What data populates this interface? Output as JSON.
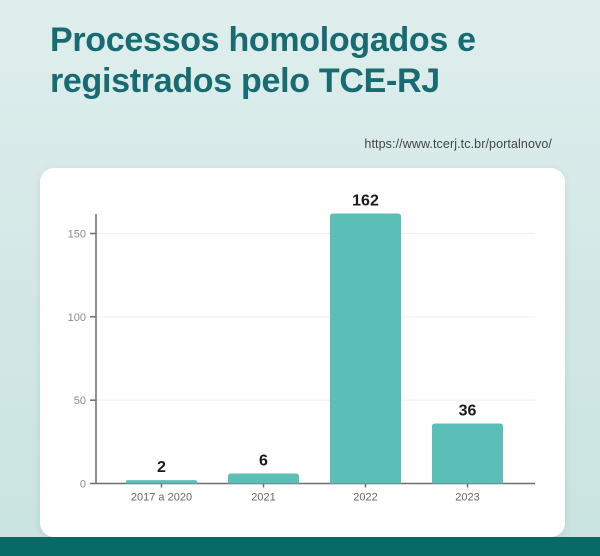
{
  "header": {
    "title": "Processos homologados e registrados pelo TCE-RJ",
    "source_url": "https://www.tcerj.tc.br/portalnovo/"
  },
  "colors": {
    "title_text": "#196b72",
    "footer_bar": "#086a67",
    "background_top": "#deeeed",
    "background_bottom": "#c9e3e0",
    "card_background": "#ffffff",
    "bar_fill": "#5bbfb7",
    "axis_line": "#6e6e6e",
    "gridline": "#ededed",
    "ytick_label": "#8b8b8b",
    "category_label": "#666666",
    "value_label": "#1a1a1a"
  },
  "chart_data": {
    "type": "bar",
    "title": "",
    "xlabel": "",
    "ylabel": "",
    "categories": [
      "2017 a 2020",
      "2021",
      "2022",
      "2023"
    ],
    "values": [
      2,
      6,
      162,
      36
    ],
    "yticks": [
      0,
      50,
      100,
      150
    ],
    "ylim": [
      0,
      162
    ],
    "grid": true,
    "legend": false,
    "bar_color": "#5bbfb7"
  }
}
